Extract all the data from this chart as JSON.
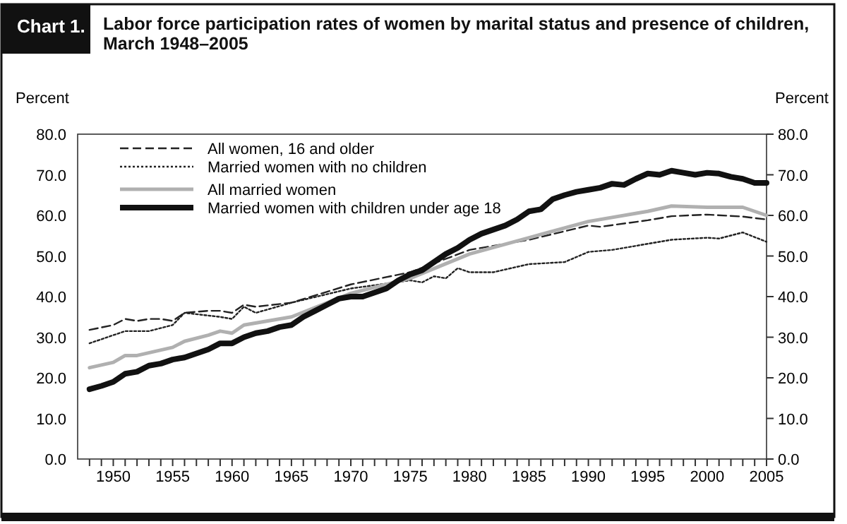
{
  "chart_data": {
    "type": "line",
    "title": "Labor force participation rates of women by marital status and presence of children, March 1948–2005",
    "annotations": [
      "Chart 1."
    ],
    "ylabel": "Percent",
    "y2label": "Percent",
    "xlim": [
      1947,
      2005
    ],
    "xticks": [
      {
        "value": 1948,
        "label": null
      },
      {
        "value": 1949,
        "label": null
      },
      1950,
      {
        "value": 1951,
        "label": null
      },
      {
        "value": 1952,
        "label": null
      },
      {
        "value": 1953,
        "label": null
      },
      {
        "value": 1954,
        "label": null
      },
      1955,
      {
        "value": 1956,
        "label": null
      },
      {
        "value": 1957,
        "label": null
      },
      {
        "value": 1958,
        "label": null
      },
      {
        "value": 1959,
        "label": null
      },
      1960,
      {
        "value": 1961,
        "label": null
      },
      {
        "value": 1962,
        "label": null
      },
      {
        "value": 1963,
        "label": null
      },
      {
        "value": 1964,
        "label": null
      },
      1965,
      {
        "value": 1966,
        "label": null
      },
      {
        "value": 1967,
        "label": null
      },
      {
        "value": 1968,
        "label": null
      },
      {
        "value": 1969,
        "label": null
      },
      1970,
      {
        "value": 1971,
        "label": null
      },
      {
        "value": 1972,
        "label": null
      },
      {
        "value": 1973,
        "label": null
      },
      {
        "value": 1974,
        "label": null
      },
      1975,
      {
        "value": 1976,
        "label": null
      },
      {
        "value": 1977,
        "label": null
      },
      {
        "value": 1978,
        "label": null
      },
      {
        "value": 1979,
        "label": null
      },
      1980,
      {
        "value": 1981,
        "label": null
      },
      {
        "value": 1982,
        "label": null
      },
      {
        "value": 1983,
        "label": null
      },
      {
        "value": 1984,
        "label": null
      },
      1985,
      {
        "value": 1986,
        "label": null
      },
      {
        "value": 1987,
        "label": null
      },
      {
        "value": 1988,
        "label": null
      },
      {
        "value": 1989,
        "label": null
      },
      1990,
      {
        "value": 1991,
        "label": null
      },
      {
        "value": 1992,
        "label": null
      },
      {
        "value": 1993,
        "label": null
      },
      {
        "value": 1994,
        "label": null
      },
      1995,
      {
        "value": 1996,
        "label": null
      },
      {
        "value": 1997,
        "label": null
      },
      {
        "value": 1998,
        "label": null
      },
      {
        "value": 1999,
        "label": null
      },
      2000,
      {
        "value": 2001,
        "label": null
      },
      {
        "value": 2002,
        "label": null
      },
      {
        "value": 2003,
        "label": null
      },
      {
        "value": 2004,
        "label": null
      },
      2005
    ],
    "ylim": [
      0,
      80
    ],
    "yticks": [
      {
        "value": 0,
        "label": "0.0"
      },
      {
        "value": 10,
        "label": "10.0"
      },
      {
        "value": 20,
        "label": "20.0"
      },
      {
        "value": 30,
        "label": "30.0"
      },
      {
        "value": 40,
        "label": "40.0"
      },
      {
        "value": 50,
        "label": "50.0"
      },
      {
        "value": 60,
        "label": "60.0"
      },
      {
        "value": 70,
        "label": "70.0"
      },
      {
        "value": 80,
        "label": "80.0"
      }
    ],
    "y2lim": [
      0,
      80
    ],
    "y2ticks": [
      {
        "value": 0,
        "label": "0.0"
      },
      {
        "value": 10,
        "label": "10.0"
      },
      {
        "value": 20,
        "label": "20.0"
      },
      {
        "value": 30,
        "label": "30.0"
      },
      {
        "value": 40,
        "label": "40.0"
      },
      {
        "value": 50,
        "label": "50.0"
      },
      {
        "value": 60,
        "label": "60.0"
      },
      {
        "value": 70,
        "label": "70.0"
      },
      {
        "value": 80,
        "label": "80.0"
      }
    ],
    "legend": "top left",
    "grid": false,
    "marker": "none",
    "series": [
      {
        "name": "All women, 16 and older",
        "color": "#222222",
        "line_style": "dashed",
        "x": [
          1948,
          1950,
          1951,
          1952,
          1953,
          1954,
          1955,
          1956,
          1958,
          1959,
          1960,
          1961,
          1962,
          1965,
          1970,
          1975,
          1980,
          1985,
          1990,
          1991,
          1995,
          1997,
          2000,
          2003,
          2005
        ],
        "values": [
          31.8,
          33,
          34.5,
          34,
          34.5,
          34.5,
          34,
          36,
          36.5,
          36.5,
          36,
          38,
          37.5,
          38.5,
          43,
          46,
          51.5,
          54,
          57.5,
          57.2,
          58.8,
          59.8,
          60.2,
          59.7,
          59
        ]
      },
      {
        "name": "Married women with no children",
        "color": "#222222",
        "line_style": "dotted",
        "x": [
          1948,
          1950,
          1951,
          1953,
          1955,
          1956,
          1959,
          1960,
          1961,
          1962,
          1965,
          1970,
          1975,
          1976,
          1977,
          1978,
          1979,
          1980,
          1982,
          1985,
          1988,
          1990,
          1992,
          1995,
          1997,
          2000,
          2001,
          2003,
          2005
        ],
        "values": [
          28.5,
          30.5,
          31.5,
          31.5,
          33,
          36,
          35,
          34.5,
          37.5,
          36,
          38.5,
          42,
          44,
          43.5,
          45,
          44.5,
          47,
          46,
          46,
          48,
          48.5,
          51,
          51.5,
          53,
          54,
          54.5,
          54.3,
          55.8,
          53.5
        ]
      },
      {
        "name": "All married women",
        "color": "#b0b0b0",
        "line_style": "solid",
        "x": [
          1948,
          1950,
          1951,
          1952,
          1955,
          1956,
          1958,
          1959,
          1960,
          1961,
          1965,
          1970,
          1975,
          1980,
          1985,
          1990,
          1995,
          1997,
          2000,
          2003,
          2005
        ],
        "values": [
          22.5,
          23.8,
          25.5,
          25.5,
          27.5,
          29,
          30.5,
          31.5,
          31,
          33,
          35,
          40.8,
          44.5,
          50.5,
          54.5,
          58.5,
          61,
          62.3,
          62,
          62,
          60
        ]
      },
      {
        "name": "Married women with children under age 18",
        "color": "#111111",
        "line_style": "solid",
        "x": [
          1948,
          1949,
          1950,
          1951,
          1952,
          1953,
          1954,
          1955,
          1956,
          1957,
          1958,
          1959,
          1960,
          1961,
          1962,
          1963,
          1964,
          1965,
          1966,
          1967,
          1968,
          1969,
          1970,
          1971,
          1972,
          1973,
          1974,
          1975,
          1976,
          1977,
          1978,
          1979,
          1980,
          1981,
          1982,
          1983,
          1984,
          1985,
          1986,
          1987,
          1988,
          1989,
          1990,
          1991,
          1992,
          1993,
          1994,
          1995,
          1996,
          1997,
          1998,
          1999,
          2000,
          2001,
          2002,
          2003,
          2004,
          2005
        ],
        "values": [
          17.2,
          18,
          19,
          21,
          21.5,
          23,
          23.5,
          24.5,
          25,
          26,
          27,
          28.5,
          28.5,
          30,
          31,
          31.5,
          32.5,
          33,
          35,
          36.5,
          38,
          39.5,
          40,
          40,
          41,
          42,
          44,
          45.5,
          46.5,
          48.5,
          50.5,
          52,
          54,
          55.5,
          56.5,
          57.5,
          59,
          61,
          61.5,
          64,
          65,
          65.8,
          66.3,
          66.8,
          67.8,
          67.5,
          69,
          70.3,
          70,
          71,
          70.5,
          70,
          70.5,
          70.3,
          69.5,
          69,
          68,
          68
        ]
      }
    ]
  }
}
